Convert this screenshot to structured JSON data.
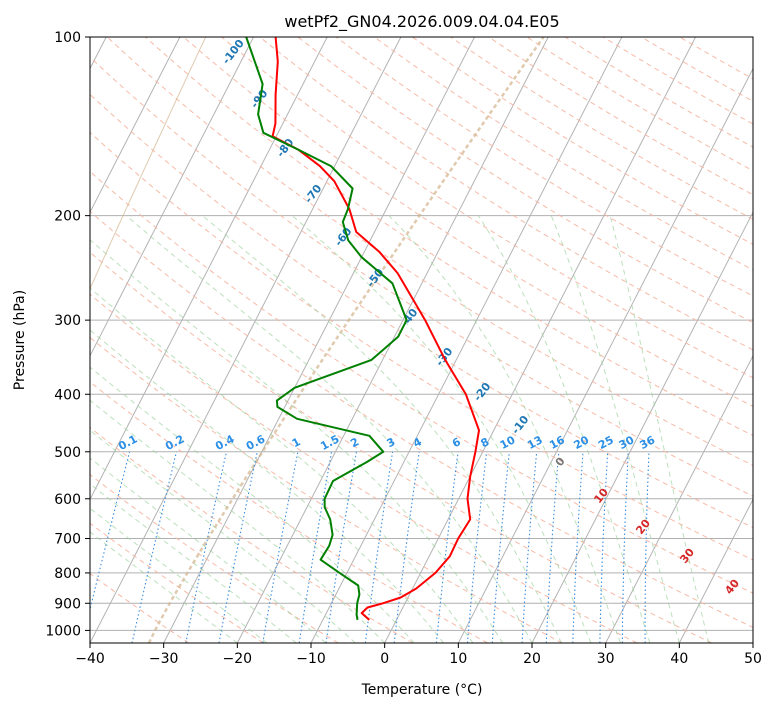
{
  "chart_data": {
    "type": "skew-t",
    "title": "wetPf2_GN04.2026.009.04.04.E05",
    "xlabel": "Temperature (°C)",
    "ylabel": "Pressure (hPa)",
    "xlim": [
      -40,
      50
    ],
    "ylim": [
      1050,
      100
    ],
    "x_ticks": [
      -40,
      -30,
      -20,
      -10,
      0,
      10,
      20,
      30,
      40,
      50
    ],
    "x_tick_labels": [
      "−40",
      "−30",
      "−20",
      "−10",
      "0",
      "10",
      "20",
      "30",
      "40",
      "50"
    ],
    "y_ticks": [
      100,
      200,
      300,
      400,
      500,
      600,
      700,
      800,
      900,
      1000
    ],
    "y_tick_labels": [
      "100",
      "200",
      "300",
      "400",
      "500",
      "600",
      "700",
      "800",
      "900",
      "1000"
    ],
    "series": [
      {
        "name": "temperature",
        "color": "#ff0000",
        "points": [
          [
            960,
            -3.7
          ],
          [
            935,
            -5.2
          ],
          [
            915,
            -4.8
          ],
          [
            900,
            -3.0
          ],
          [
            880,
            -1.0
          ],
          [
            850,
            0.5
          ],
          [
            800,
            2.0
          ],
          [
            750,
            2.8
          ],
          [
            700,
            2.7
          ],
          [
            650,
            3.0
          ],
          [
            600,
            1.2
          ],
          [
            550,
            0.0
          ],
          [
            500,
            -1.0
          ],
          [
            460,
            -2.0
          ],
          [
            400,
            -6.3
          ],
          [
            350,
            -11.5
          ],
          [
            300,
            -17.0
          ],
          [
            250,
            -24.0
          ],
          [
            230,
            -28.0
          ],
          [
            213,
            -32.5
          ],
          [
            195,
            -35.0
          ],
          [
            175,
            -39.0
          ],
          [
            165,
            -42.0
          ],
          [
            155,
            -46.0
          ],
          [
            147,
            -50.5
          ],
          [
            140,
            -51.0
          ],
          [
            125,
            -53.0
          ],
          [
            110,
            -55.0
          ],
          [
            100,
            -57.0
          ]
        ]
      },
      {
        "name": "dewpoint",
        "color": "#008000",
        "points": [
          [
            960,
            -5.3
          ],
          [
            940,
            -5.8
          ],
          [
            900,
            -6.5
          ],
          [
            870,
            -6.8
          ],
          [
            840,
            -7.6
          ],
          [
            800,
            -11.0
          ],
          [
            760,
            -14.5
          ],
          [
            720,
            -14.3
          ],
          [
            690,
            -14.6
          ],
          [
            650,
            -16.0
          ],
          [
            620,
            -17.6
          ],
          [
            600,
            -18.2
          ],
          [
            560,
            -18.3
          ],
          [
            520,
            -15.0
          ],
          [
            500,
            -13.5
          ],
          [
            470,
            -16.5
          ],
          [
            440,
            -27.5
          ],
          [
            420,
            -31.0
          ],
          [
            410,
            -31.5
          ],
          [
            390,
            -30.0
          ],
          [
            350,
            -21.5
          ],
          [
            320,
            -19.5
          ],
          [
            300,
            -19.5
          ],
          [
            260,
            -24.0
          ],
          [
            235,
            -30.0
          ],
          [
            220,
            -33.0
          ],
          [
            205,
            -35.0
          ],
          [
            195,
            -35.2
          ],
          [
            180,
            -36.0
          ],
          [
            165,
            -40.5
          ],
          [
            155,
            -46.0
          ],
          [
            145,
            -52.0
          ],
          [
            135,
            -54.0
          ],
          [
            120,
            -55.5
          ],
          [
            100,
            -61.0
          ]
        ]
      }
    ],
    "mixing_ratio_labels": [
      "0.1",
      "0.2",
      "0.4",
      "0.6",
      "1",
      "1.5",
      "2",
      "3",
      "4",
      "6",
      "8",
      "10",
      "13",
      "16",
      "20",
      "25",
      "30",
      "36"
    ],
    "isotherm_labels": [
      "-100",
      "-90",
      "-80",
      "-70",
      "-60",
      "-50",
      "-40",
      "-30",
      "-20",
      "-10",
      "0"
    ],
    "wetbulb_labels": [
      "10",
      "20",
      "30",
      "40"
    ]
  }
}
